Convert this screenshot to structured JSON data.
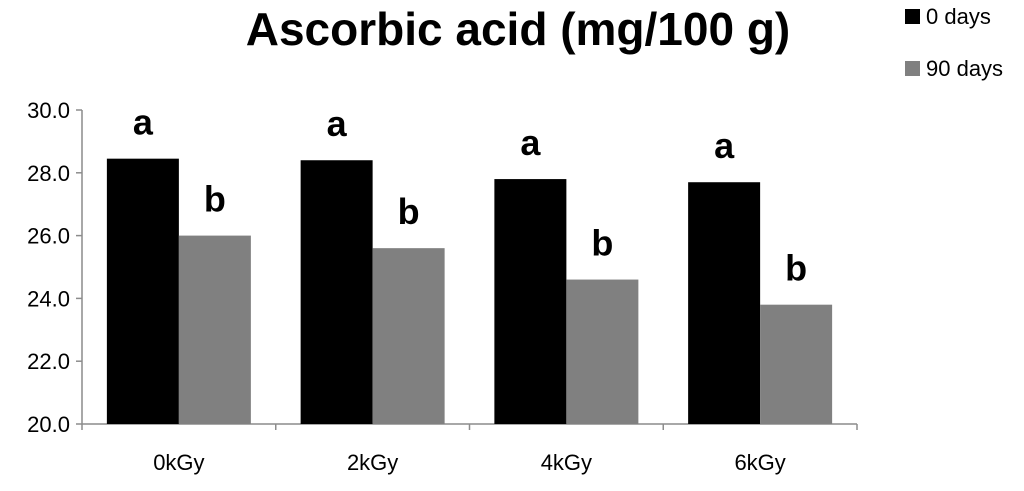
{
  "chart_data": {
    "type": "bar",
    "title": "Ascorbic acid (mg/100 g)",
    "xlabel": "",
    "ylabel": "",
    "categories": [
      "0kGy",
      "2kGy",
      "4kGy",
      "6kGy"
    ],
    "ylim": [
      20.0,
      30.0
    ],
    "y_ticks": [
      "20.0",
      "22.0",
      "24.0",
      "26.0",
      "28.0",
      "30.0"
    ],
    "grid": false,
    "legend_position": "top-right",
    "series": [
      {
        "name": "0 days",
        "color": "#000000",
        "values": [
          28.45,
          28.4,
          27.8,
          27.7
        ],
        "labels": [
          "a",
          "a",
          "a",
          "a"
        ]
      },
      {
        "name": "90 days",
        "color": "#808080",
        "values": [
          26.0,
          25.6,
          24.6,
          23.8
        ],
        "labels": [
          "b",
          "b",
          "b",
          "b"
        ]
      }
    ]
  }
}
